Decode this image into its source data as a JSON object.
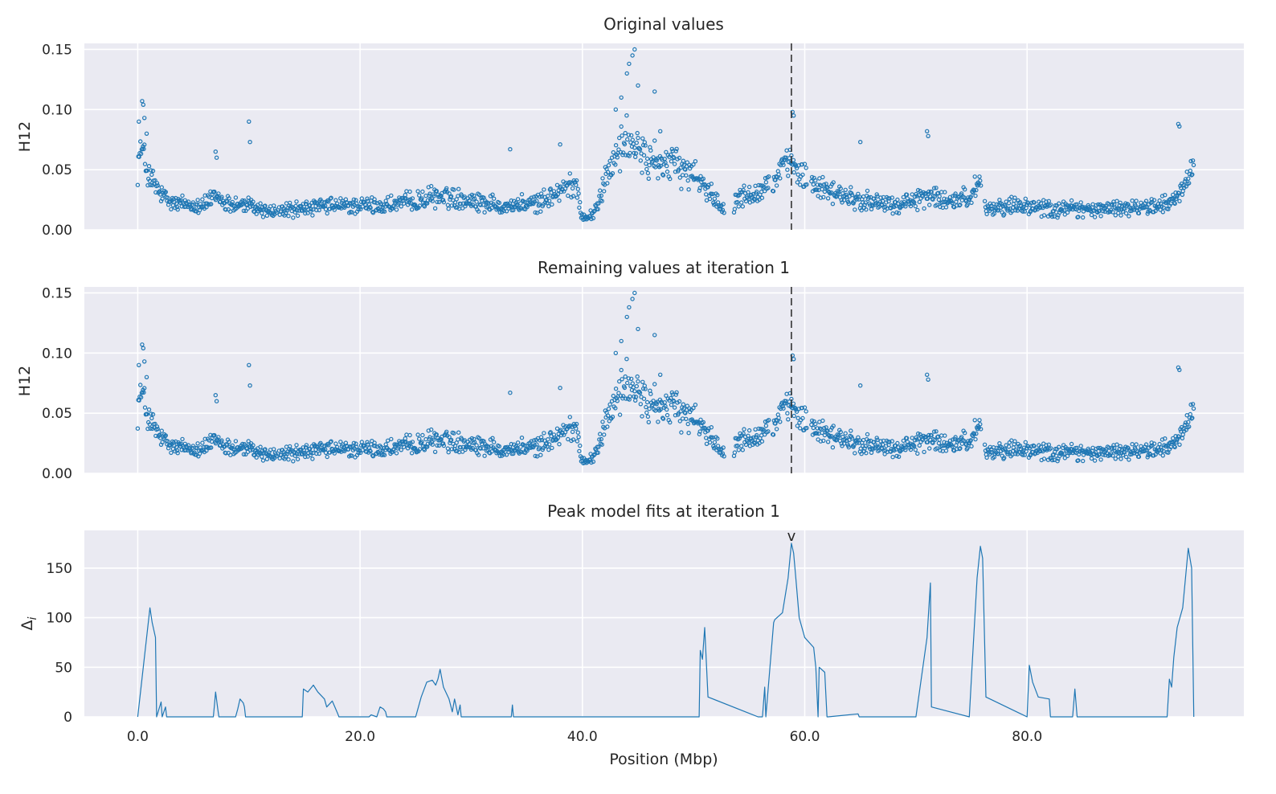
{
  "chart_data": [
    {
      "type": "scatter",
      "title": "Original values",
      "ylabel": "H12",
      "xlabel": "",
      "xlim": [
        -4.8,
        99.5
      ],
      "ylim": [
        0,
        0.155
      ],
      "yticks": [
        "0.00",
        "0.05",
        "0.10",
        "0.15"
      ],
      "xticks": [
        0.0,
        20.0,
        40.0,
        60.0,
        80.0
      ],
      "grid": true,
      "marker": "open-circle",
      "color": "#1f77b4",
      "vline_x": 58.8,
      "profile": [
        [
          0,
          0.055
        ],
        [
          0.3,
          0.068
        ],
        [
          1,
          0.045
        ],
        [
          2,
          0.03
        ],
        [
          3,
          0.022
        ],
        [
          6,
          0.021
        ],
        [
          7,
          0.028
        ],
        [
          8,
          0.022
        ],
        [
          10,
          0.02
        ],
        [
          12,
          0.015
        ],
        [
          15,
          0.018
        ],
        [
          18,
          0.02
        ],
        [
          22,
          0.02
        ],
        [
          25,
          0.024
        ],
        [
          27,
          0.028
        ],
        [
          30,
          0.025
        ],
        [
          33,
          0.02
        ],
        [
          36,
          0.022
        ],
        [
          38.5,
          0.035
        ],
        [
          39.5,
          0.038
        ],
        [
          40,
          0.01
        ],
        [
          41,
          0.012
        ],
        [
          42,
          0.04
        ],
        [
          43,
          0.06
        ],
        [
          44,
          0.075
        ],
        [
          45,
          0.065
        ],
        [
          46,
          0.058
        ],
        [
          48,
          0.055
        ],
        [
          50,
          0.045
        ],
        [
          51,
          0.038
        ],
        [
          52,
          0.025
        ],
        [
          53,
          0.015
        ],
        [
          54,
          0.028
        ],
        [
          56,
          0.032
        ],
        [
          57,
          0.04
        ],
        [
          58,
          0.05
        ],
        [
          59,
          0.055
        ],
        [
          60,
          0.042
        ],
        [
          62,
          0.032
        ],
        [
          65,
          0.025
        ],
        [
          68,
          0.02
        ],
        [
          70,
          0.025
        ],
        [
          71,
          0.03
        ],
        [
          73,
          0.022
        ],
        [
          75,
          0.028
        ],
        [
          75.8,
          0.045
        ],
        [
          76,
          0.018
        ],
        [
          78,
          0.02
        ],
        [
          80,
          0.02
        ],
        [
          83,
          0.018
        ],
        [
          86,
          0.017
        ],
        [
          89,
          0.018
        ],
        [
          92,
          0.02
        ],
        [
          93.5,
          0.028
        ],
        [
          94.5,
          0.045
        ],
        [
          95,
          0.052
        ]
      ],
      "outliers": [
        [
          0.1,
          0.09
        ],
        [
          0.4,
          0.107
        ],
        [
          0.5,
          0.104
        ],
        [
          0.6,
          0.093
        ],
        [
          0.8,
          0.08
        ],
        [
          7,
          0.065
        ],
        [
          7.1,
          0.06
        ],
        [
          10,
          0.09
        ],
        [
          10.1,
          0.073
        ],
        [
          33.5,
          0.067
        ],
        [
          38,
          0.071
        ],
        [
          43,
          0.1
        ],
        [
          43.5,
          0.11
        ],
        [
          44,
          0.13
        ],
        [
          44.2,
          0.138
        ],
        [
          44.5,
          0.145
        ],
        [
          44.7,
          0.15
        ],
        [
          45,
          0.12
        ],
        [
          46.5,
          0.115
        ],
        [
          47,
          0.082
        ],
        [
          58.9,
          0.098
        ],
        [
          59,
          0.095
        ],
        [
          65,
          0.073
        ],
        [
          71,
          0.082
        ],
        [
          71.1,
          0.078
        ],
        [
          93.6,
          0.088
        ],
        [
          93.7,
          0.086
        ]
      ],
      "gaps": [
        [
          12.5,
          12.7
        ],
        [
          52.8,
          53.6
        ],
        [
          56.8,
          57.1
        ],
        [
          60.2,
          60.6
        ],
        [
          75.9,
          76.2
        ]
      ]
    },
    {
      "type": "scatter",
      "title": "Remaining values at iteration 1",
      "ylabel": "H12",
      "xlabel": "",
      "xlim": [
        -4.8,
        99.5
      ],
      "ylim": [
        0,
        0.155
      ],
      "yticks": [
        "0.00",
        "0.05",
        "0.10",
        "0.15"
      ],
      "xticks": [
        0.0,
        20.0,
        40.0,
        60.0,
        80.0
      ],
      "grid": true,
      "marker": "open-circle",
      "color": "#1f77b4",
      "vline_x": 58.8,
      "same_as_original": true
    },
    {
      "type": "line",
      "title": "Peak model fits at iteration 1",
      "ylabel": "Δ",
      "ylabel_subscript": "i",
      "xlabel": "Position (Mbp)",
      "xlim": [
        -4.8,
        99.5
      ],
      "ylim": [
        0,
        188
      ],
      "yticks": [
        "0",
        "50",
        "100",
        "150"
      ],
      "xticks": [
        0.0,
        20.0,
        40.0,
        60.0,
        80.0
      ],
      "xtick_labels": [
        "0.0",
        "20.0",
        "40.0",
        "60.0",
        "80.0"
      ],
      "grid": true,
      "color": "#1f77b4",
      "peak_marker": {
        "x": 58.8,
        "label": "v"
      },
      "x": [
        0,
        1.1,
        1.3,
        1.6,
        1.7,
        2.1,
        2.2,
        2.5,
        2.6,
        6.8,
        6.9,
        7.0,
        7.2,
        7.3,
        8.8,
        9.0,
        9.2,
        9.5,
        9.6,
        9.7,
        14.8,
        14.9,
        15.3,
        15.8,
        16.2,
        16.8,
        17.0,
        17.5,
        18.0,
        18.1,
        20.8,
        21.0,
        21.5,
        21.8,
        22.1,
        22.3,
        22.4,
        25.0,
        25.5,
        26.0,
        26.5,
        26.8,
        27.0,
        27.2,
        27.5,
        28.0,
        28.3,
        28.5,
        28.8,
        29.0,
        29.1,
        33.6,
        33.7,
        33.8,
        40.0,
        50.5,
        50.6,
        50.8,
        51.0,
        51.3,
        55.8,
        56.2,
        56.4,
        56.5,
        57.2,
        57.3,
        58.0,
        58.5,
        58.8,
        59.0,
        59.2,
        59.5,
        60.0,
        60.8,
        61.0,
        61.2,
        61.3,
        61.8,
        62.0,
        62.1,
        64.8,
        64.9,
        70.0,
        70.5,
        71.0,
        71.3,
        71.4,
        74.8,
        75.0,
        75.5,
        75.8,
        76.0,
        76.3,
        80.0,
        80.2,
        80.5,
        81.0,
        82.0,
        82.1,
        84.1,
        84.3,
        84.5,
        92.6,
        92.8,
        93.0,
        93.2,
        93.5,
        94.0,
        94.5,
        94.8,
        95.0
      ],
      "y": [
        0,
        110,
        95,
        80,
        0,
        15,
        0,
        10,
        0,
        0,
        12,
        25,
        8,
        0,
        0,
        8,
        18,
        14,
        10,
        0,
        0,
        28,
        25,
        32,
        25,
        18,
        10,
        16,
        3,
        0,
        0,
        2,
        0,
        10,
        8,
        5,
        0,
        0,
        20,
        35,
        37,
        32,
        38,
        48,
        30,
        18,
        5,
        18,
        2,
        12,
        0,
        0,
        12,
        0,
        0,
        0,
        67,
        58,
        90,
        20,
        0,
        0,
        30,
        0,
        95,
        98,
        105,
        140,
        175,
        165,
        140,
        100,
        80,
        70,
        50,
        0,
        50,
        45,
        0,
        0,
        3,
        0,
        0,
        40,
        80,
        135,
        10,
        0,
        40,
        140,
        172,
        160,
        20,
        0,
        52,
        35,
        20,
        18,
        0,
        0,
        28,
        0,
        0,
        38,
        30,
        60,
        90,
        110,
        170,
        150,
        0
      ]
    }
  ]
}
